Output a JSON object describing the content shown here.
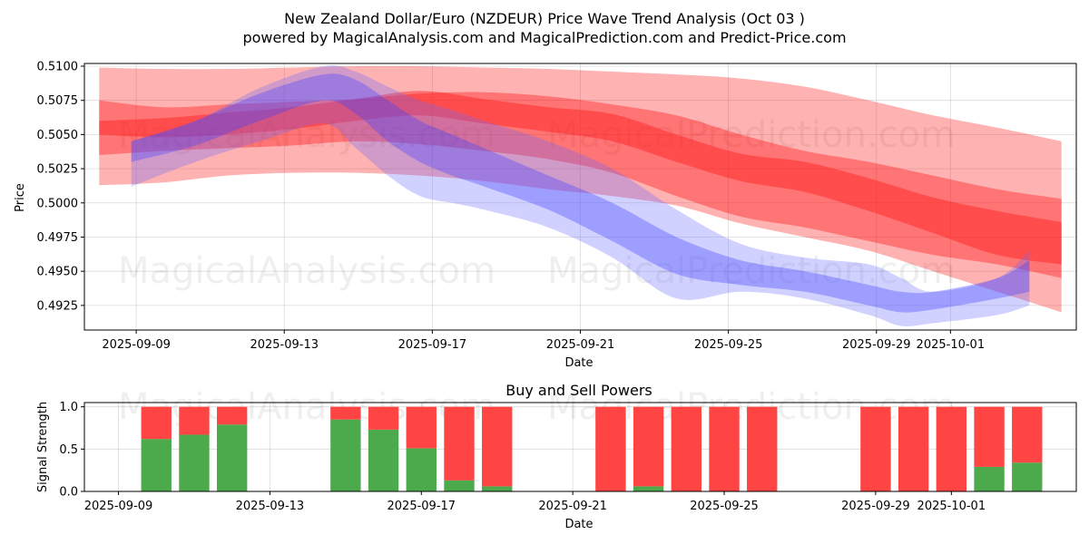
{
  "chart_data": [
    {
      "type": "area",
      "title": "New Zealand Dollar/Euro (NZDEUR) Price Wave Trend Analysis (Oct 03 )",
      "subtitle": "powered by MagicalAnalysis.com and MagicalPrediction.com and Predict-Price.com",
      "xlabel": "Date",
      "ylabel": "Price",
      "xlim": [
        "2025-09-07.6",
        "2025-10-04.4"
      ],
      "ylim": [
        0.4907,
        0.5102
      ],
      "yticks": [
        0.4925,
        0.495,
        0.4975,
        0.5,
        0.5025,
        0.505,
        0.5075,
        0.51
      ],
      "ytick_labels": [
        "0.4925",
        "0.4950",
        "0.4975",
        "0.5000",
        "0.5025",
        "0.5050",
        "0.5075",
        "0.5100"
      ],
      "xticks": [
        "2025-09-09",
        "2025-09-13",
        "2025-09-17",
        "2025-09-21",
        "2025-09-25",
        "2025-09-29",
        "2025-10-01"
      ],
      "watermarks": [
        "MagicalAnalysis.com",
        "MagicalPrediction.com",
        "MagicalAnalysis.com",
        "MagicalPrediction.com"
      ],
      "series": [
        {
          "name": "red-wave-wide",
          "color": "#ff0000",
          "opacity": 0.3,
          "x": [
            0,
            2,
            4,
            6,
            8,
            10,
            12,
            14,
            16,
            18,
            20,
            22,
            24,
            26,
            28,
            30
          ],
          "upper": [
            0.5099,
            0.5098,
            0.5098,
            0.5099,
            0.51,
            0.51,
            0.5099,
            0.5098,
            0.5096,
            0.5094,
            0.5091,
            0.5085,
            0.5075,
            0.5064,
            0.5055,
            0.5045
          ],
          "lower": [
            0.5013,
            0.5015,
            0.502,
            0.5022,
            0.5022,
            0.502,
            0.5016,
            0.501,
            0.5005,
            0.4998,
            0.4985,
            0.4975,
            0.4965,
            0.495,
            0.4935,
            0.492
          ]
        },
        {
          "name": "red-wave-mid",
          "color": "#ff0000",
          "opacity": 0.35,
          "x": [
            0,
            2,
            4,
            6,
            8,
            10,
            12,
            14,
            16,
            18,
            20,
            22,
            24,
            26,
            28,
            30
          ],
          "upper": [
            0.5075,
            0.507,
            0.5072,
            0.5074,
            0.5076,
            0.508,
            0.5081,
            0.5078,
            0.5072,
            0.5064,
            0.505,
            0.5038,
            0.503,
            0.502,
            0.501,
            0.5003
          ],
          "lower": [
            0.5035,
            0.5038,
            0.504,
            0.5042,
            0.5045,
            0.5043,
            0.5038,
            0.5032,
            0.5022,
            0.5005,
            0.499,
            0.4982,
            0.4972,
            0.4962,
            0.4955,
            0.4945
          ]
        },
        {
          "name": "red-wave-core",
          "color": "#ff2020",
          "opacity": 0.45,
          "x": [
            0,
            2,
            4,
            6,
            8,
            10,
            12,
            14,
            16,
            18,
            20,
            22,
            24,
            26,
            28,
            30
          ],
          "upper": [
            0.506,
            0.5062,
            0.5066,
            0.507,
            0.5076,
            0.5082,
            0.5076,
            0.507,
            0.5065,
            0.505,
            0.5036,
            0.503,
            0.5018,
            0.5004,
            0.4994,
            0.4986
          ],
          "lower": [
            0.505,
            0.5048,
            0.505,
            0.5054,
            0.506,
            0.5064,
            0.5058,
            0.5052,
            0.5045,
            0.503,
            0.5016,
            0.5008,
            0.4994,
            0.4978,
            0.4962,
            0.4955
          ]
        },
        {
          "name": "blue-wave-wide",
          "color": "#6666ff",
          "opacity": 0.3,
          "x": [
            1,
            3,
            5,
            7,
            8,
            9,
            10,
            11,
            12,
            14,
            16,
            18,
            20,
            22,
            24,
            25,
            26,
            28,
            29
          ],
          "upper": [
            0.5045,
            0.506,
            0.5084,
            0.51,
            0.5096,
            0.5085,
            0.5075,
            0.5068,
            0.506,
            0.5045,
            0.5025,
            0.4995,
            0.497,
            0.496,
            0.4955,
            0.4945,
            0.4935,
            0.4945,
            0.4965
          ],
          "lower": [
            0.5012,
            0.503,
            0.5045,
            0.5058,
            0.504,
            0.502,
            0.5005,
            0.5,
            0.4995,
            0.4982,
            0.496,
            0.493,
            0.4935,
            0.493,
            0.4918,
            0.491,
            0.4912,
            0.4918,
            0.4925
          ]
        },
        {
          "name": "blue-wave-core",
          "color": "#4040ff",
          "opacity": 0.35,
          "x": [
            1,
            3,
            5,
            7,
            8,
            9,
            10,
            11,
            12,
            14,
            16,
            18,
            20,
            22,
            24,
            25,
            26,
            28,
            29
          ],
          "upper": [
            0.5045,
            0.506,
            0.508,
            0.5094,
            0.509,
            0.5075,
            0.506,
            0.505,
            0.504,
            0.502,
            0.5,
            0.4975,
            0.4958,
            0.495,
            0.494,
            0.4935,
            0.4935,
            0.4945,
            0.4958
          ],
          "lower": [
            0.503,
            0.5042,
            0.506,
            0.5075,
            0.5065,
            0.5045,
            0.503,
            0.502,
            0.5012,
            0.4995,
            0.4972,
            0.4948,
            0.494,
            0.4935,
            0.4925,
            0.492,
            0.4922,
            0.493,
            0.4935
          ]
        }
      ]
    },
    {
      "type": "bar",
      "title": "Buy and Sell Powers",
      "xlabel": "Date",
      "ylabel": "Signal Strength",
      "ylim": [
        0,
        1.05
      ],
      "yticks": [
        0.0,
        0.5,
        1.0
      ],
      "ytick_labels": [
        "0.0",
        "0.5",
        "1.0"
      ],
      "xticks": [
        "2025-09-09",
        "2025-09-13",
        "2025-09-17",
        "2025-09-21",
        "2025-09-25",
        "2025-09-29",
        "2025-10-01"
      ],
      "buy_color": "#4caa4c",
      "sell_color": "#ff4444",
      "dates": [
        "2025-09-10",
        "2025-09-11",
        "2025-09-12",
        "2025-09-15",
        "2025-09-16",
        "2025-09-17",
        "2025-09-18",
        "2025-09-19",
        "2025-09-22",
        "2025-09-23",
        "2025-09-24",
        "2025-09-25",
        "2025-09-26",
        "2025-09-29",
        "2025-09-30",
        "2025-10-01",
        "2025-10-02",
        "2025-10-03"
      ],
      "buy": [
        0.62,
        0.67,
        0.79,
        0.85,
        0.73,
        0.51,
        0.13,
        0.06,
        0.0,
        0.06,
        0.0,
        0.0,
        0.0,
        0.0,
        0.0,
        0.0,
        0.29,
        0.34
      ],
      "sell": [
        0.38,
        0.33,
        0.21,
        0.15,
        0.27,
        0.49,
        0.87,
        0.94,
        1.0,
        0.94,
        1.0,
        1.0,
        1.0,
        1.0,
        1.0,
        1.0,
        0.71,
        0.66
      ]
    }
  ]
}
